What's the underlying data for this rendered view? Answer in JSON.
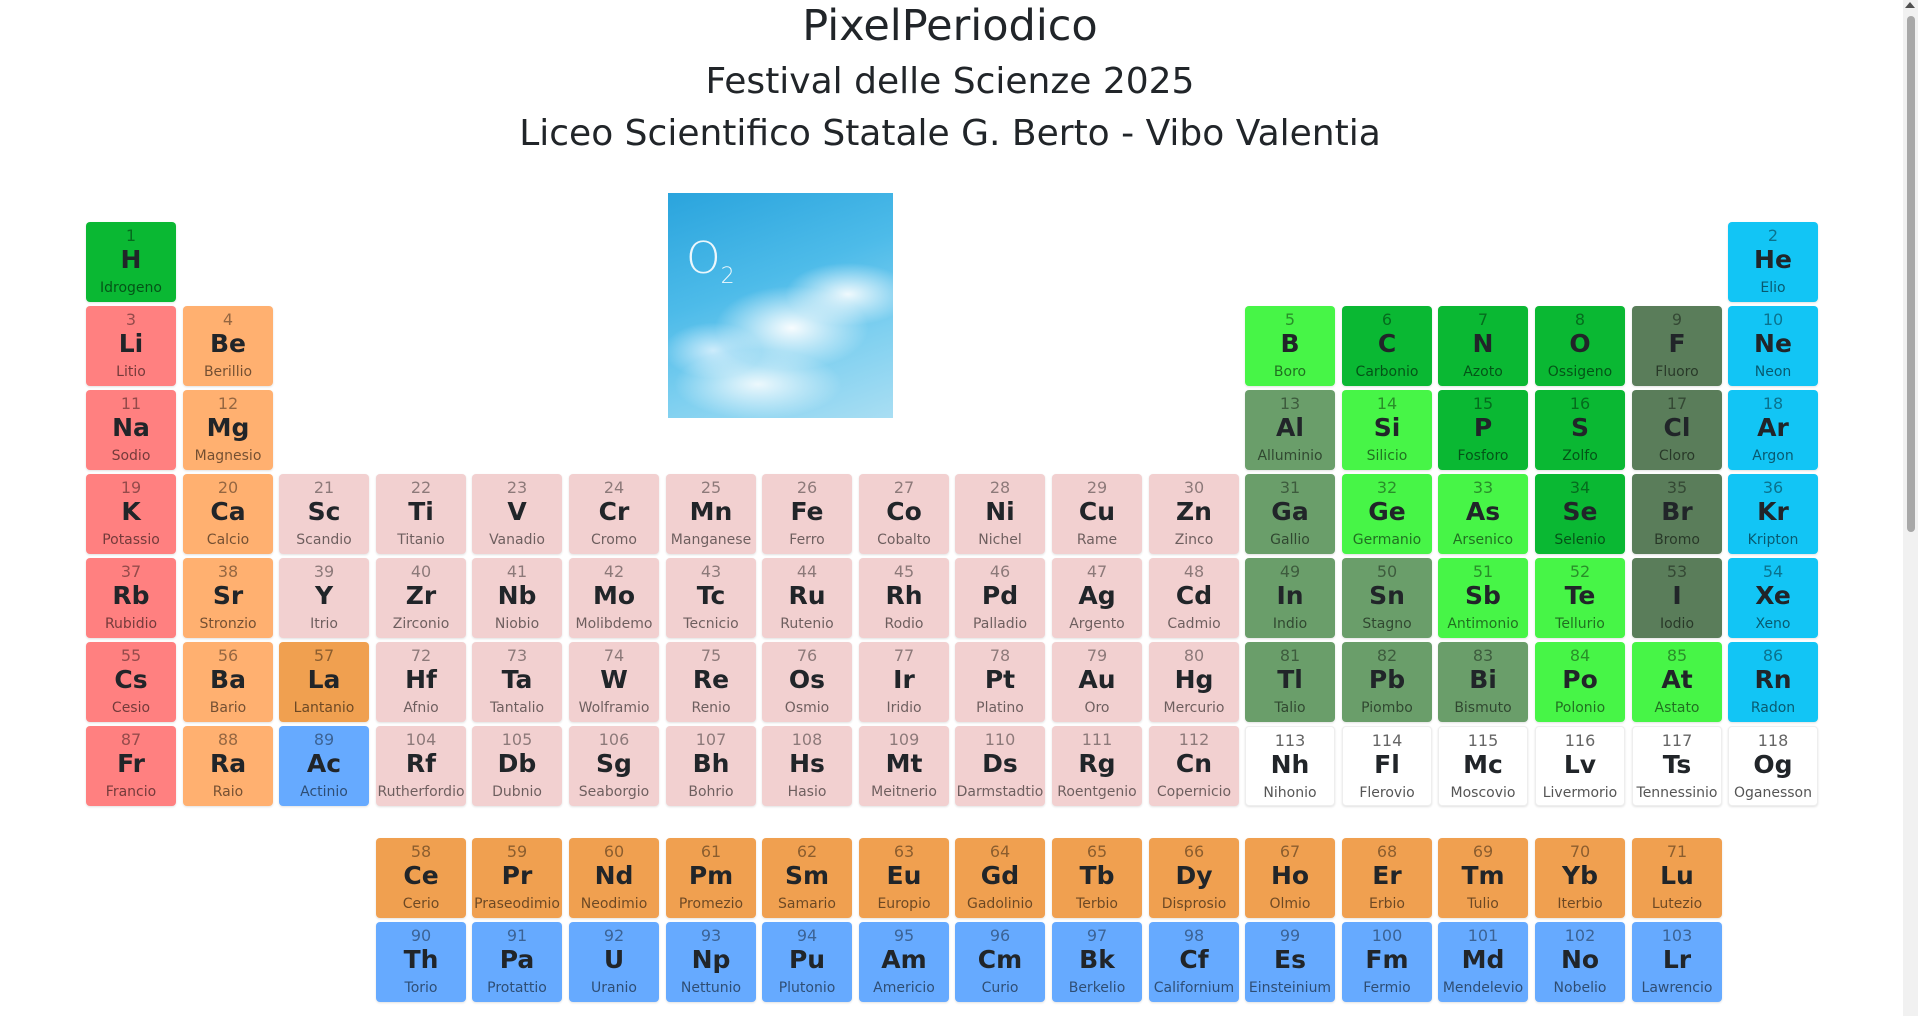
{
  "header": {
    "title": "PixelPeriodico",
    "subtitle": "Festival delle Scienze 2025",
    "school": "Liceo Scientifico Statale G. Berto - Vibo Valentia"
  },
  "picture": {
    "label": "O",
    "sub": "2"
  },
  "colors": {
    "alkali": "#ff8080",
    "alkaline": "#ffb070",
    "transition": "#f2d0d0",
    "lanthanide": "#f0a050",
    "actinide": "#66aaff",
    "noble": "#12c5f5",
    "nonmetal": "#0ab833",
    "postmetal": "#6a9e6a",
    "metalloid": "#47f547",
    "halogen": "#5a7d5a",
    "unknown": "#ffffff"
  },
  "elements": [
    {
      "n": "1",
      "s": "H",
      "name": "Idrogeno",
      "c": "nonmetal",
      "row": 0,
      "col": 0
    },
    {
      "n": "2",
      "s": "He",
      "name": "Elio",
      "c": "noble",
      "row": 0,
      "col": 17
    },
    {
      "n": "3",
      "s": "Li",
      "name": "Litio",
      "c": "alkali",
      "row": 1,
      "col": 0
    },
    {
      "n": "4",
      "s": "Be",
      "name": "Berillio",
      "c": "alkaline",
      "row": 1,
      "col": 1
    },
    {
      "n": "5",
      "s": "B",
      "name": "Boro",
      "c": "metalloid",
      "row": 1,
      "col": 12
    },
    {
      "n": "6",
      "s": "C",
      "name": "Carbonio",
      "c": "nonmetal",
      "row": 1,
      "col": 13
    },
    {
      "n": "7",
      "s": "N",
      "name": "Azoto",
      "c": "nonmetal",
      "row": 1,
      "col": 14
    },
    {
      "n": "8",
      "s": "O",
      "name": "Ossigeno",
      "c": "nonmetal",
      "row": 1,
      "col": 15
    },
    {
      "n": "9",
      "s": "F",
      "name": "Fluoro",
      "c": "halogen",
      "row": 1,
      "col": 16
    },
    {
      "n": "10",
      "s": "Ne",
      "name": "Neon",
      "c": "noble",
      "row": 1,
      "col": 17
    },
    {
      "n": "11",
      "s": "Na",
      "name": "Sodio",
      "c": "alkali",
      "row": 2,
      "col": 0
    },
    {
      "n": "12",
      "s": "Mg",
      "name": "Magnesio",
      "c": "alkaline",
      "row": 2,
      "col": 1
    },
    {
      "n": "13",
      "s": "Al",
      "name": "Alluminio",
      "c": "postmetal",
      "row": 2,
      "col": 12
    },
    {
      "n": "14",
      "s": "Si",
      "name": "Silicio",
      "c": "metalloid",
      "row": 2,
      "col": 13
    },
    {
      "n": "15",
      "s": "P",
      "name": "Fosforo",
      "c": "nonmetal",
      "row": 2,
      "col": 14
    },
    {
      "n": "16",
      "s": "S",
      "name": "Zolfo",
      "c": "nonmetal",
      "row": 2,
      "col": 15
    },
    {
      "n": "17",
      "s": "Cl",
      "name": "Cloro",
      "c": "halogen",
      "row": 2,
      "col": 16
    },
    {
      "n": "18",
      "s": "Ar",
      "name": "Argon",
      "c": "noble",
      "row": 2,
      "col": 17
    },
    {
      "n": "19",
      "s": "K",
      "name": "Potassio",
      "c": "alkali",
      "row": 3,
      "col": 0
    },
    {
      "n": "20",
      "s": "Ca",
      "name": "Calcio",
      "c": "alkaline",
      "row": 3,
      "col": 1
    },
    {
      "n": "21",
      "s": "Sc",
      "name": "Scandio",
      "c": "transition",
      "row": 3,
      "col": 2
    },
    {
      "n": "22",
      "s": "Ti",
      "name": "Titanio",
      "c": "transition",
      "row": 3,
      "col": 3
    },
    {
      "n": "23",
      "s": "V",
      "name": "Vanadio",
      "c": "transition",
      "row": 3,
      "col": 4
    },
    {
      "n": "24",
      "s": "Cr",
      "name": "Cromo",
      "c": "transition",
      "row": 3,
      "col": 5
    },
    {
      "n": "25",
      "s": "Mn",
      "name": "Manganese",
      "c": "transition",
      "row": 3,
      "col": 6
    },
    {
      "n": "26",
      "s": "Fe",
      "name": "Ferro",
      "c": "transition",
      "row": 3,
      "col": 7
    },
    {
      "n": "27",
      "s": "Co",
      "name": "Cobalto",
      "c": "transition",
      "row": 3,
      "col": 8
    },
    {
      "n": "28",
      "s": "Ni",
      "name": "Nichel",
      "c": "transition",
      "row": 3,
      "col": 9
    },
    {
      "n": "29",
      "s": "Cu",
      "name": "Rame",
      "c": "transition",
      "row": 3,
      "col": 10
    },
    {
      "n": "30",
      "s": "Zn",
      "name": "Zinco",
      "c": "transition",
      "row": 3,
      "col": 11
    },
    {
      "n": "31",
      "s": "Ga",
      "name": "Gallio",
      "c": "postmetal",
      "row": 3,
      "col": 12
    },
    {
      "n": "32",
      "s": "Ge",
      "name": "Germanio",
      "c": "metalloid",
      "row": 3,
      "col": 13
    },
    {
      "n": "33",
      "s": "As",
      "name": "Arsenico",
      "c": "metalloid",
      "row": 3,
      "col": 14
    },
    {
      "n": "34",
      "s": "Se",
      "name": "Selenio",
      "c": "nonmetal",
      "row": 3,
      "col": 15
    },
    {
      "n": "35",
      "s": "Br",
      "name": "Bromo",
      "c": "halogen",
      "row": 3,
      "col": 16
    },
    {
      "n": "36",
      "s": "Kr",
      "name": "Kripton",
      "c": "noble",
      "row": 3,
      "col": 17
    },
    {
      "n": "37",
      "s": "Rb",
      "name": "Rubidio",
      "c": "alkali",
      "row": 4,
      "col": 0
    },
    {
      "n": "38",
      "s": "Sr",
      "name": "Stronzio",
      "c": "alkaline",
      "row": 4,
      "col": 1
    },
    {
      "n": "39",
      "s": "Y",
      "name": "Itrio",
      "c": "transition",
      "row": 4,
      "col": 2
    },
    {
      "n": "40",
      "s": "Zr",
      "name": "Zirconio",
      "c": "transition",
      "row": 4,
      "col": 3
    },
    {
      "n": "41",
      "s": "Nb",
      "name": "Niobio",
      "c": "transition",
      "row": 4,
      "col": 4
    },
    {
      "n": "42",
      "s": "Mo",
      "name": "Molibdemo",
      "c": "transition",
      "row": 4,
      "col": 5
    },
    {
      "n": "43",
      "s": "Tc",
      "name": "Tecnicio",
      "c": "transition",
      "row": 4,
      "col": 6
    },
    {
      "n": "44",
      "s": "Ru",
      "name": "Rutenio",
      "c": "transition",
      "row": 4,
      "col": 7
    },
    {
      "n": "45",
      "s": "Rh",
      "name": "Rodio",
      "c": "transition",
      "row": 4,
      "col": 8
    },
    {
      "n": "46",
      "s": "Pd",
      "name": "Palladio",
      "c": "transition",
      "row": 4,
      "col": 9
    },
    {
      "n": "47",
      "s": "Ag",
      "name": "Argento",
      "c": "transition",
      "row": 4,
      "col": 10
    },
    {
      "n": "48",
      "s": "Cd",
      "name": "Cadmio",
      "c": "transition",
      "row": 4,
      "col": 11
    },
    {
      "n": "49",
      "s": "In",
      "name": "Indio",
      "c": "postmetal",
      "row": 4,
      "col": 12
    },
    {
      "n": "50",
      "s": "Sn",
      "name": "Stagno",
      "c": "postmetal",
      "row": 4,
      "col": 13
    },
    {
      "n": "51",
      "s": "Sb",
      "name": "Antimonio",
      "c": "metalloid",
      "row": 4,
      "col": 14
    },
    {
      "n": "52",
      "s": "Te",
      "name": "Tellurio",
      "c": "metalloid",
      "row": 4,
      "col": 15
    },
    {
      "n": "53",
      "s": "I",
      "name": "Iodio",
      "c": "halogen",
      "row": 4,
      "col": 16
    },
    {
      "n": "54",
      "s": "Xe",
      "name": "Xeno",
      "c": "noble",
      "row": 4,
      "col": 17
    },
    {
      "n": "55",
      "s": "Cs",
      "name": "Cesio",
      "c": "alkali",
      "row": 5,
      "col": 0
    },
    {
      "n": "56",
      "s": "Ba",
      "name": "Bario",
      "c": "alkaline",
      "row": 5,
      "col": 1
    },
    {
      "n": "57",
      "s": "La",
      "name": "Lantanio",
      "c": "lanthanide",
      "row": 5,
      "col": 2
    },
    {
      "n": "72",
      "s": "Hf",
      "name": "Afnio",
      "c": "transition",
      "row": 5,
      "col": 3
    },
    {
      "n": "73",
      "s": "Ta",
      "name": "Tantalio",
      "c": "transition",
      "row": 5,
      "col": 4
    },
    {
      "n": "74",
      "s": "W",
      "name": "Wolframio",
      "c": "transition",
      "row": 5,
      "col": 5
    },
    {
      "n": "75",
      "s": "Re",
      "name": "Renio",
      "c": "transition",
      "row": 5,
      "col": 6
    },
    {
      "n": "76",
      "s": "Os",
      "name": "Osmio",
      "c": "transition",
      "row": 5,
      "col": 7
    },
    {
      "n": "77",
      "s": "Ir",
      "name": "Iridio",
      "c": "transition",
      "row": 5,
      "col": 8
    },
    {
      "n": "78",
      "s": "Pt",
      "name": "Platino",
      "c": "transition",
      "row": 5,
      "col": 9
    },
    {
      "n": "79",
      "s": "Au",
      "name": "Oro",
      "c": "transition",
      "row": 5,
      "col": 10
    },
    {
      "n": "80",
      "s": "Hg",
      "name": "Mercurio",
      "c": "transition",
      "row": 5,
      "col": 11
    },
    {
      "n": "81",
      "s": "Tl",
      "name": "Talio",
      "c": "postmetal",
      "row": 5,
      "col": 12
    },
    {
      "n": "82",
      "s": "Pb",
      "name": "Piombo",
      "c": "postmetal",
      "row": 5,
      "col": 13
    },
    {
      "n": "83",
      "s": "Bi",
      "name": "Bismuto",
      "c": "postmetal",
      "row": 5,
      "col": 14
    },
    {
      "n": "84",
      "s": "Po",
      "name": "Polonio",
      "c": "metalloid",
      "row": 5,
      "col": 15
    },
    {
      "n": "85",
      "s": "At",
      "name": "Astato",
      "c": "metalloid",
      "row": 5,
      "col": 16
    },
    {
      "n": "86",
      "s": "Rn",
      "name": "Radon",
      "c": "noble",
      "row": 5,
      "col": 17
    },
    {
      "n": "87",
      "s": "Fr",
      "name": "Francio",
      "c": "alkali",
      "row": 6,
      "col": 0
    },
    {
      "n": "88",
      "s": "Ra",
      "name": "Raio",
      "c": "alkaline",
      "row": 6,
      "col": 1
    },
    {
      "n": "89",
      "s": "Ac",
      "name": "Actinio",
      "c": "actinide",
      "row": 6,
      "col": 2
    },
    {
      "n": "104",
      "s": "Rf",
      "name": "Rutherfordio",
      "c": "transition",
      "row": 6,
      "col": 3
    },
    {
      "n": "105",
      "s": "Db",
      "name": "Dubnio",
      "c": "transition",
      "row": 6,
      "col": 4
    },
    {
      "n": "106",
      "s": "Sg",
      "name": "Seaborgio",
      "c": "transition",
      "row": 6,
      "col": 5
    },
    {
      "n": "107",
      "s": "Bh",
      "name": "Bohrio",
      "c": "transition",
      "row": 6,
      "col": 6
    },
    {
      "n": "108",
      "s": "Hs",
      "name": "Hasio",
      "c": "transition",
      "row": 6,
      "col": 7
    },
    {
      "n": "109",
      "s": "Mt",
      "name": "Meitnerio",
      "c": "transition",
      "row": 6,
      "col": 8
    },
    {
      "n": "110",
      "s": "Ds",
      "name": "Darmstadtio",
      "c": "transition",
      "row": 6,
      "col": 9
    },
    {
      "n": "111",
      "s": "Rg",
      "name": "Roentgenio",
      "c": "transition",
      "row": 6,
      "col": 10
    },
    {
      "n": "112",
      "s": "Cn",
      "name": "Copernicio",
      "c": "transition",
      "row": 6,
      "col": 11
    },
    {
      "n": "113",
      "s": "Nh",
      "name": "Nihonio",
      "c": "unknown",
      "row": 6,
      "col": 12
    },
    {
      "n": "114",
      "s": "Fl",
      "name": "Flerovio",
      "c": "unknown",
      "row": 6,
      "col": 13
    },
    {
      "n": "115",
      "s": "Mc",
      "name": "Moscovio",
      "c": "unknown",
      "row": 6,
      "col": 14
    },
    {
      "n": "116",
      "s": "Lv",
      "name": "Livermorio",
      "c": "unknown",
      "row": 6,
      "col": 15
    },
    {
      "n": "117",
      "s": "Ts",
      "name": "Tennessinio",
      "c": "unknown",
      "row": 6,
      "col": 16
    },
    {
      "n": "118",
      "s": "Og",
      "name": "Oganesson",
      "c": "unknown",
      "row": 6,
      "col": 17
    },
    {
      "n": "58",
      "s": "Ce",
      "name": "Cerio",
      "c": "lanthanide",
      "row": 7,
      "col": 3
    },
    {
      "n": "59",
      "s": "Pr",
      "name": "Praseodimio",
      "c": "lanthanide",
      "row": 7,
      "col": 4
    },
    {
      "n": "60",
      "s": "Nd",
      "name": "Neodimio",
      "c": "lanthanide",
      "row": 7,
      "col": 5
    },
    {
      "n": "61",
      "s": "Pm",
      "name": "Promezio",
      "c": "lanthanide",
      "row": 7,
      "col": 6
    },
    {
      "n": "62",
      "s": "Sm",
      "name": "Samario",
      "c": "lanthanide",
      "row": 7,
      "col": 7
    },
    {
      "n": "63",
      "s": "Eu",
      "name": "Europio",
      "c": "lanthanide",
      "row": 7,
      "col": 8
    },
    {
      "n": "64",
      "s": "Gd",
      "name": "Gadolinio",
      "c": "lanthanide",
      "row": 7,
      "col": 9
    },
    {
      "n": "65",
      "s": "Tb",
      "name": "Terbio",
      "c": "lanthanide",
      "row": 7,
      "col": 10
    },
    {
      "n": "66",
      "s": "Dy",
      "name": "Disprosio",
      "c": "lanthanide",
      "row": 7,
      "col": 11
    },
    {
      "n": "67",
      "s": "Ho",
      "name": "Olmio",
      "c": "lanthanide",
      "row": 7,
      "col": 12
    },
    {
      "n": "68",
      "s": "Er",
      "name": "Erbio",
      "c": "lanthanide",
      "row": 7,
      "col": 13
    },
    {
      "n": "69",
      "s": "Tm",
      "name": "Tulio",
      "c": "lanthanide",
      "row": 7,
      "col": 14
    },
    {
      "n": "70",
      "s": "Yb",
      "name": "Iterbio",
      "c": "lanthanide",
      "row": 7,
      "col": 15
    },
    {
      "n": "71",
      "s": "Lu",
      "name": "Lutezio",
      "c": "lanthanide",
      "row": 7,
      "col": 16
    },
    {
      "n": "90",
      "s": "Th",
      "name": "Torio",
      "c": "actinide",
      "row": 8,
      "col": 3
    },
    {
      "n": "91",
      "s": "Pa",
      "name": "Protattio",
      "c": "actinide",
      "row": 8,
      "col": 4
    },
    {
      "n": "92",
      "s": "U",
      "name": "Uranio",
      "c": "actinide",
      "row": 8,
      "col": 5
    },
    {
      "n": "93",
      "s": "Np",
      "name": "Nettunio",
      "c": "actinide",
      "row": 8,
      "col": 6
    },
    {
      "n": "94",
      "s": "Pu",
      "name": "Plutonio",
      "c": "actinide",
      "row": 8,
      "col": 7
    },
    {
      "n": "95",
      "s": "Am",
      "name": "Americio",
      "c": "actinide",
      "row": 8,
      "col": 8
    },
    {
      "n": "96",
      "s": "Cm",
      "name": "Curio",
      "c": "actinide",
      "row": 8,
      "col": 9
    },
    {
      "n": "97",
      "s": "Bk",
      "name": "Berkelio",
      "c": "actinide",
      "row": 8,
      "col": 10
    },
    {
      "n": "98",
      "s": "Cf",
      "name": "Californium",
      "c": "actinide",
      "row": 8,
      "col": 11
    },
    {
      "n": "99",
      "s": "Es",
      "name": "Einsteinium",
      "c": "actinide",
      "row": 8,
      "col": 12
    },
    {
      "n": "100",
      "s": "Fm",
      "name": "Fermio",
      "c": "actinide",
      "row": 8,
      "col": 13
    },
    {
      "n": "101",
      "s": "Md",
      "name": "Mendelevio",
      "c": "actinide",
      "row": 8,
      "col": 14
    },
    {
      "n": "102",
      "s": "No",
      "name": "Nobelio",
      "c": "actinide",
      "row": 8,
      "col": 15
    },
    {
      "n": "103",
      "s": "Lr",
      "name": "Lawrencio",
      "c": "actinide",
      "row": 8,
      "col": 16
    }
  ]
}
